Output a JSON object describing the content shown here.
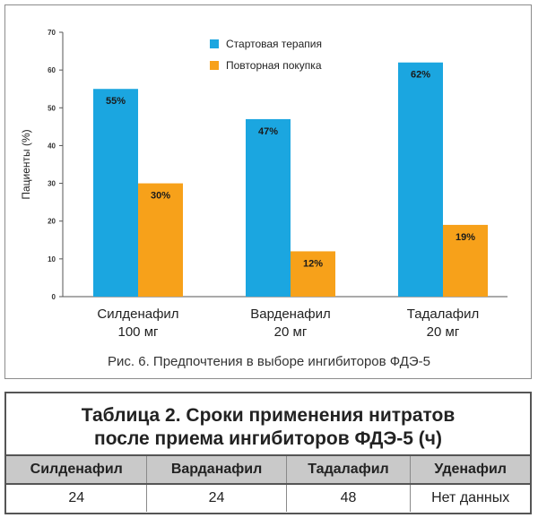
{
  "chart_data": {
    "type": "bar",
    "categories": [
      [
        "Силденафил",
        "100 мг"
      ],
      [
        "Варденафил",
        "20 мг"
      ],
      [
        "Тадалафил",
        "20 мг"
      ]
    ],
    "series": [
      {
        "name": "Стартовая терапия",
        "values": [
          55,
          47,
          62
        ],
        "labels": [
          "55%",
          "47%",
          "62%"
        ],
        "color": "#1ba6e0"
      },
      {
        "name": "Повторная покупка",
        "values": [
          30,
          12,
          19
        ],
        "labels": [
          "30%",
          "12%",
          "19%"
        ],
        "color": "#f7a11a"
      }
    ],
    "ylabel": "Пациенты (%)",
    "ylim": [
      0,
      70
    ],
    "yticks": [
      "0",
      "10",
      "20",
      "30",
      "40",
      "50",
      "60",
      "70"
    ],
    "legend_position": "top-center",
    "grid": false
  },
  "caption": "Рис. 6. Предпочтения в выборе ингибиторов ФДЭ-5",
  "table": {
    "title_line1": "Таблица 2. Сроки применения нитратов",
    "title_line2": "после приема ингибиторов ФДЭ-5 (ч)",
    "headers": [
      "Силденафил",
      "Варданафил",
      "Тадалафил",
      "Уденафил"
    ],
    "row": [
      "24",
      "24",
      "48",
      "Нет данных"
    ]
  }
}
